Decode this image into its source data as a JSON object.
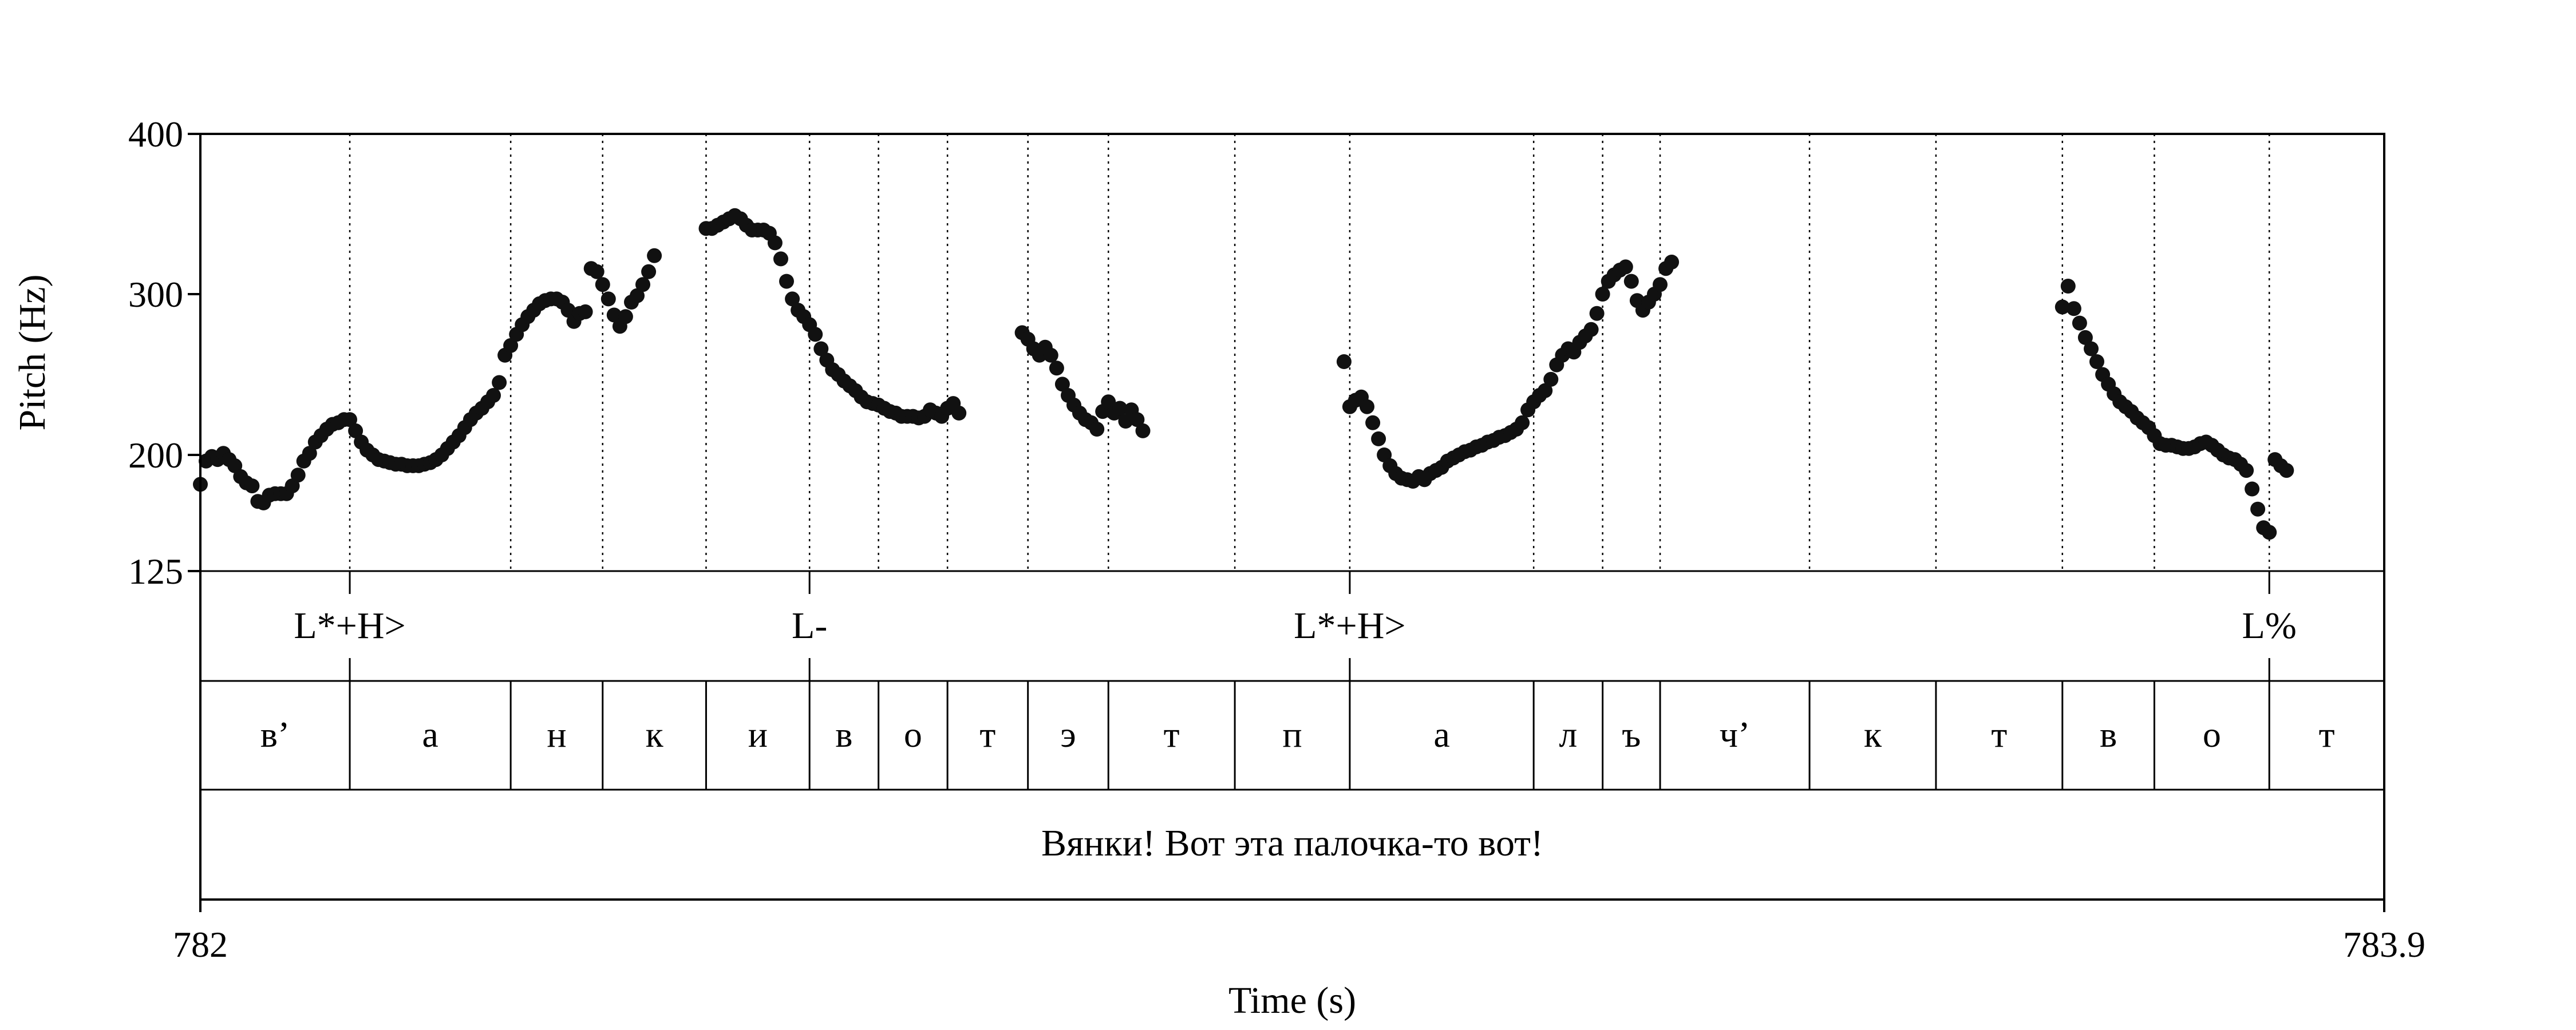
{
  "chart_data": {
    "type": "scatter",
    "xlabel": "Time (s)",
    "ylabel": "Pitch (Hz)",
    "xlim": [
      782,
      783.9
    ],
    "ylim": [
      125,
      400
    ],
    "y_ticks": [
      400,
      300,
      200,
      125
    ],
    "x_tick_labels": [
      "782",
      "783.9"
    ],
    "tone_tier": [
      {
        "label": "L*+H>",
        "time": 782.13
      },
      {
        "label": "L-",
        "time": 782.53
      },
      {
        "label": "L*+H>",
        "time": 783.0
      },
      {
        "label": "L%",
        "time": 783.8
      }
    ],
    "segments": [
      {
        "label": "в’",
        "start": 782.0,
        "end": 782.13
      },
      {
        "label": "а",
        "start": 782.13,
        "end": 782.27
      },
      {
        "label": "н",
        "start": 782.27,
        "end": 782.35
      },
      {
        "label": "к",
        "start": 782.35,
        "end": 782.44
      },
      {
        "label": "и",
        "start": 782.44,
        "end": 782.53
      },
      {
        "label": "в",
        "start": 782.53,
        "end": 782.59
      },
      {
        "label": "о",
        "start": 782.59,
        "end": 782.65
      },
      {
        "label": "т",
        "start": 782.65,
        "end": 782.72
      },
      {
        "label": "э",
        "start": 782.72,
        "end": 782.79
      },
      {
        "label": "т",
        "start": 782.79,
        "end": 782.9
      },
      {
        "label": "п",
        "start": 782.9,
        "end": 783.0
      },
      {
        "label": "а",
        "start": 783.0,
        "end": 783.16
      },
      {
        "label": "л",
        "start": 783.16,
        "end": 783.22
      },
      {
        "label": "ъ",
        "start": 783.22,
        "end": 783.27
      },
      {
        "label": "ч’",
        "start": 783.27,
        "end": 783.4
      },
      {
        "label": "к",
        "start": 783.4,
        "end": 783.51
      },
      {
        "label": "т",
        "start": 783.51,
        "end": 783.62
      },
      {
        "label": "в",
        "start": 783.62,
        "end": 783.7
      },
      {
        "label": "о",
        "start": 783.7,
        "end": 783.8
      },
      {
        "label": "т",
        "start": 783.8,
        "end": 783.9
      }
    ],
    "utterance": "Вянки! Вот эта палочка-то вот!",
    "pitch_series": [
      {
        "points": [
          [
            782.0,
            181
          ],
          [
            782.005,
            196
          ],
          [
            782.01,
            199
          ],
          [
            782.015,
            197
          ],
          [
            782.02,
            201
          ],
          [
            782.025,
            197
          ],
          [
            782.03,
            193
          ],
          [
            782.035,
            186
          ],
          [
            782.04,
            182
          ],
          [
            782.045,
            180
          ],
          [
            782.05,
            170
          ],
          [
            782.055,
            169
          ],
          [
            782.06,
            174
          ],
          [
            782.065,
            175
          ],
          [
            782.07,
            175
          ],
          [
            782.075,
            175
          ],
          [
            782.08,
            180
          ],
          [
            782.085,
            187
          ],
          [
            782.09,
            196
          ],
          [
            782.095,
            201
          ],
          [
            782.1,
            208
          ],
          [
            782.105,
            212
          ],
          [
            782.11,
            216
          ],
          [
            782.115,
            219
          ],
          [
            782.12,
            220
          ],
          [
            782.125,
            222
          ],
          [
            782.13,
            222
          ],
          [
            782.135,
            215
          ],
          [
            782.14,
            208
          ],
          [
            782.145,
            203
          ],
          [
            782.15,
            200
          ],
          [
            782.155,
            197
          ],
          [
            782.16,
            196
          ],
          [
            782.165,
            195
          ],
          [
            782.17,
            194
          ],
          [
            782.175,
            194
          ],
          [
            782.18,
            193
          ],
          [
            782.185,
            193
          ],
          [
            782.19,
            193
          ],
          [
            782.195,
            194
          ],
          [
            782.2,
            195
          ],
          [
            782.205,
            197
          ],
          [
            782.21,
            200
          ],
          [
            782.215,
            204
          ],
          [
            782.22,
            208
          ],
          [
            782.225,
            212
          ],
          [
            782.23,
            217
          ],
          [
            782.235,
            222
          ],
          [
            782.24,
            226
          ],
          [
            782.245,
            229
          ],
          [
            782.25,
            233
          ],
          [
            782.255,
            237
          ],
          [
            782.26,
            245
          ],
          [
            782.265,
            262
          ],
          [
            782.27,
            268
          ],
          [
            782.275,
            275
          ],
          [
            782.28,
            281
          ],
          [
            782.285,
            286
          ],
          [
            782.29,
            290
          ],
          [
            782.295,
            294
          ],
          [
            782.3,
            296
          ],
          [
            782.305,
            297
          ],
          [
            782.31,
            297
          ],
          [
            782.315,
            295
          ],
          [
            782.32,
            290
          ],
          [
            782.325,
            283
          ],
          [
            782.33,
            288
          ],
          [
            782.335,
            289
          ],
          [
            782.34,
            316
          ],
          [
            782.345,
            314
          ],
          [
            782.35,
            306
          ],
          [
            782.355,
            297
          ],
          [
            782.36,
            287
          ],
          [
            782.365,
            280
          ],
          [
            782.37,
            286
          ],
          [
            782.375,
            295
          ],
          [
            782.38,
            299
          ],
          [
            782.385,
            306
          ],
          [
            782.39,
            314
          ],
          [
            782.395,
            324
          ]
        ]
      },
      {
        "points": [
          [
            782.44,
            341
          ],
          [
            782.445,
            341
          ],
          [
            782.45,
            343
          ],
          [
            782.455,
            345
          ],
          [
            782.46,
            347
          ],
          [
            782.465,
            349
          ],
          [
            782.47,
            347
          ],
          [
            782.475,
            343
          ],
          [
            782.48,
            340
          ],
          [
            782.485,
            340
          ],
          [
            782.49,
            340
          ],
          [
            782.495,
            338
          ],
          [
            782.5,
            332
          ],
          [
            782.505,
            322
          ],
          [
            782.51,
            308
          ],
          [
            782.515,
            297
          ],
          [
            782.52,
            290
          ],
          [
            782.525,
            286
          ],
          [
            782.53,
            281
          ],
          [
            782.535,
            275
          ],
          [
            782.54,
            266
          ],
          [
            782.545,
            259
          ],
          [
            782.55,
            253
          ],
          [
            782.555,
            250
          ],
          [
            782.56,
            246
          ],
          [
            782.565,
            243
          ],
          [
            782.57,
            240
          ],
          [
            782.575,
            236
          ],
          [
            782.58,
            233
          ],
          [
            782.585,
            232
          ],
          [
            782.59,
            231
          ],
          [
            782.595,
            229
          ],
          [
            782.6,
            227
          ],
          [
            782.605,
            226
          ],
          [
            782.61,
            224
          ],
          [
            782.615,
            224
          ],
          [
            782.62,
            224
          ],
          [
            782.625,
            223
          ],
          [
            782.63,
            224
          ],
          [
            782.635,
            228
          ],
          [
            782.64,
            226
          ],
          [
            782.645,
            224
          ],
          [
            782.65,
            229
          ],
          [
            782.655,
            232
          ],
          [
            782.66,
            226
          ]
        ]
      },
      {
        "points": [
          [
            782.715,
            276
          ],
          [
            782.72,
            272
          ],
          [
            782.725,
            266
          ],
          [
            782.73,
            262
          ],
          [
            782.735,
            267
          ],
          [
            782.74,
            262
          ],
          [
            782.745,
            254
          ],
          [
            782.75,
            244
          ],
          [
            782.755,
            237
          ],
          [
            782.76,
            231
          ],
          [
            782.765,
            226
          ],
          [
            782.77,
            222
          ],
          [
            782.775,
            220
          ],
          [
            782.78,
            216
          ],
          [
            782.785,
            227
          ],
          [
            782.79,
            233
          ],
          [
            782.795,
            226
          ],
          [
            782.8,
            229
          ],
          [
            782.805,
            221
          ],
          [
            782.81,
            228
          ],
          [
            782.815,
            222
          ],
          [
            782.82,
            215
          ]
        ]
      },
      {
        "points": [
          [
            782.995,
            258
          ],
          [
            783.0,
            230
          ],
          [
            783.005,
            234
          ],
          [
            783.01,
            236
          ],
          [
            783.015,
            230
          ],
          [
            783.02,
            220
          ],
          [
            783.025,
            210
          ],
          [
            783.03,
            200
          ],
          [
            783.035,
            193
          ],
          [
            783.04,
            188
          ],
          [
            783.045,
            185
          ],
          [
            783.05,
            184
          ],
          [
            783.055,
            183
          ],
          [
            783.06,
            186
          ],
          [
            783.065,
            184
          ],
          [
            783.07,
            188
          ],
          [
            783.075,
            190
          ],
          [
            783.08,
            192
          ],
          [
            783.085,
            196
          ],
          [
            783.09,
            198
          ],
          [
            783.095,
            200
          ],
          [
            783.1,
            202
          ],
          [
            783.105,
            203
          ],
          [
            783.11,
            205
          ],
          [
            783.115,
            206
          ],
          [
            783.12,
            208
          ],
          [
            783.125,
            209
          ],
          [
            783.13,
            211
          ],
          [
            783.135,
            212
          ],
          [
            783.14,
            214
          ],
          [
            783.145,
            216
          ],
          [
            783.15,
            220
          ],
          [
            783.155,
            228
          ],
          [
            783.16,
            233
          ],
          [
            783.165,
            237
          ],
          [
            783.17,
            240
          ],
          [
            783.175,
            247
          ],
          [
            783.18,
            256
          ],
          [
            783.185,
            262
          ],
          [
            783.19,
            266
          ],
          [
            783.195,
            264
          ],
          [
            783.2,
            270
          ],
          [
            783.205,
            274
          ],
          [
            783.21,
            278
          ],
          [
            783.215,
            288
          ],
          [
            783.22,
            300
          ],
          [
            783.225,
            308
          ],
          [
            783.23,
            312
          ],
          [
            783.235,
            315
          ],
          [
            783.24,
            317
          ],
          [
            783.245,
            308
          ],
          [
            783.25,
            296
          ],
          [
            783.255,
            290
          ],
          [
            783.26,
            295
          ],
          [
            783.265,
            300
          ],
          [
            783.27,
            306
          ],
          [
            783.275,
            316
          ],
          [
            783.28,
            320
          ]
        ]
      },
      {
        "points": [
          [
            783.62,
            292
          ],
          [
            783.625,
            305
          ],
          [
            783.63,
            291
          ],
          [
            783.635,
            282
          ],
          [
            783.64,
            273
          ],
          [
            783.645,
            266
          ],
          [
            783.65,
            258
          ],
          [
            783.655,
            250
          ],
          [
            783.66,
            244
          ],
          [
            783.665,
            238
          ],
          [
            783.67,
            233
          ],
          [
            783.675,
            230
          ],
          [
            783.68,
            227
          ],
          [
            783.685,
            223
          ],
          [
            783.69,
            220
          ],
          [
            783.695,
            217
          ],
          [
            783.7,
            212
          ],
          [
            783.705,
            207
          ],
          [
            783.71,
            206
          ],
          [
            783.715,
            206
          ],
          [
            783.72,
            205
          ],
          [
            783.725,
            204
          ],
          [
            783.73,
            204
          ],
          [
            783.735,
            205
          ],
          [
            783.74,
            207
          ],
          [
            783.745,
            208
          ],
          [
            783.75,
            206
          ],
          [
            783.755,
            203
          ],
          [
            783.76,
            200
          ],
          [
            783.765,
            198
          ],
          [
            783.77,
            197
          ],
          [
            783.775,
            194
          ],
          [
            783.78,
            190
          ],
          [
            783.785,
            178
          ],
          [
            783.79,
            165
          ],
          [
            783.795,
            153
          ],
          [
            783.8,
            150
          ],
          [
            783.805,
            197
          ],
          [
            783.81,
            193
          ],
          [
            783.815,
            190
          ]
        ]
      }
    ]
  }
}
